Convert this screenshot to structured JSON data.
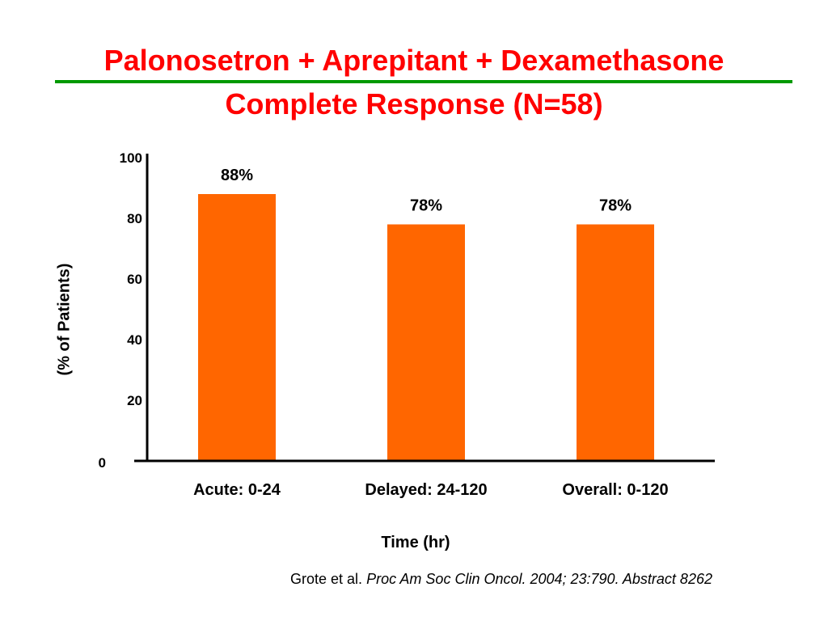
{
  "slide": {
    "title_line1": "Palonosetron + Aprepitant + Dexamethasone",
    "title_line2": "Complete Response (N=58)",
    "rule_color": "#009900",
    "title_color": "#ff0000"
  },
  "citation": {
    "authors": "Grote et al.",
    "journal": "Proc Am Soc Clin Oncol. 2004; 23:790. Abstract 8262"
  },
  "chart_data": {
    "type": "bar",
    "categories": [
      "Acute: 0-24",
      "Delayed: 24-120",
      "Overall: 0-120"
    ],
    "values": [
      88,
      78,
      78
    ],
    "data_labels": [
      "88%",
      "78%",
      "78%"
    ],
    "ylabel": "(% of Patients)",
    "xlabel": "Time (hr)",
    "yticks": [
      0,
      20,
      40,
      60,
      80,
      100
    ],
    "ylim": [
      0,
      100
    ],
    "bar_color": "#ff6600",
    "grid": false,
    "legend": "none"
  }
}
